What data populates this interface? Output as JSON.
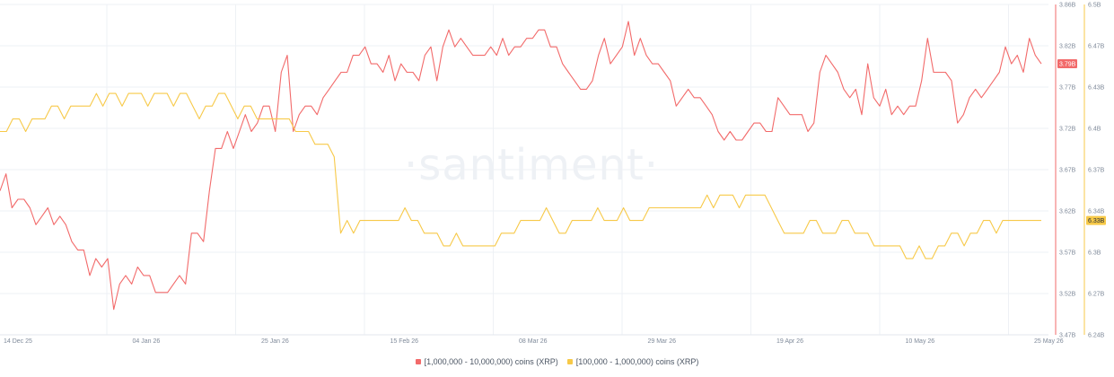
{
  "chart_data": {
    "type": "line",
    "x_labels": [
      "14 Dec 25",
      "04 Jan 26",
      "25 Jan 26",
      "15 Feb 26",
      "08 Mar 26",
      "29 Mar 26",
      "19 Apr 26",
      "10 May 26",
      "25 May 26"
    ],
    "series": [
      {
        "name": "[1,000,000 - 10,000,000) coins (XRP)",
        "color": "#f26a6a",
        "axis": "left",
        "ylim": [
          3.47,
          3.86
        ],
        "ticks": [
          "3.86B",
          "3.82B",
          "3.77B",
          "3.72B",
          "3.67B",
          "3.62B",
          "3.57B",
          "3.52B",
          "3.47B"
        ],
        "current_label": "3.79B",
        "values": [
          3.64,
          3.66,
          3.62,
          3.63,
          3.63,
          3.62,
          3.6,
          3.61,
          3.62,
          3.6,
          3.61,
          3.6,
          3.58,
          3.57,
          3.57,
          3.54,
          3.56,
          3.55,
          3.56,
          3.5,
          3.53,
          3.54,
          3.53,
          3.55,
          3.54,
          3.54,
          3.52,
          3.52,
          3.52,
          3.53,
          3.54,
          3.53,
          3.59,
          3.59,
          3.58,
          3.64,
          3.69,
          3.69,
          3.71,
          3.69,
          3.71,
          3.73,
          3.71,
          3.72,
          3.74,
          3.74,
          3.71,
          3.78,
          3.8,
          3.71,
          3.73,
          3.74,
          3.74,
          3.73,
          3.75,
          3.76,
          3.77,
          3.78,
          3.78,
          3.8,
          3.8,
          3.81,
          3.79,
          3.79,
          3.78,
          3.8,
          3.77,
          3.79,
          3.78,
          3.78,
          3.77,
          3.8,
          3.81,
          3.77,
          3.81,
          3.83,
          3.81,
          3.82,
          3.81,
          3.8,
          3.8,
          3.8,
          3.81,
          3.8,
          3.82,
          3.8,
          3.81,
          3.81,
          3.82,
          3.82,
          3.83,
          3.83,
          3.81,
          3.81,
          3.79,
          3.78,
          3.77,
          3.76,
          3.76,
          3.77,
          3.8,
          3.82,
          3.79,
          3.8,
          3.81,
          3.84,
          3.8,
          3.82,
          3.8,
          3.79,
          3.79,
          3.78,
          3.77,
          3.74,
          3.75,
          3.76,
          3.75,
          3.75,
          3.74,
          3.73,
          3.71,
          3.7,
          3.71,
          3.7,
          3.7,
          3.71,
          3.72,
          3.72,
          3.71,
          3.71,
          3.75,
          3.74,
          3.73,
          3.73,
          3.73,
          3.71,
          3.72,
          3.78,
          3.8,
          3.79,
          3.78,
          3.76,
          3.75,
          3.76,
          3.73,
          3.79,
          3.75,
          3.74,
          3.76,
          3.73,
          3.74,
          3.73,
          3.74,
          3.74,
          3.77,
          3.82,
          3.78,
          3.78,
          3.78,
          3.77,
          3.72,
          3.73,
          3.75,
          3.76,
          3.75,
          3.76,
          3.77,
          3.78,
          3.81,
          3.79,
          3.8,
          3.78,
          3.82,
          3.8,
          3.79
        ]
      },
      {
        "name": "[100,000  - 1,000,000) coins (XRP)",
        "color": "#f7c948",
        "axis": "right",
        "ylim": [
          6.24,
          6.5
        ],
        "ticks": [
          "6.5B",
          "6.47B",
          "6.43B",
          "6.4B",
          "6.37B",
          "6.34B",
          "6.3B",
          "6.27B",
          "6.24B"
        ],
        "current_label": "6.33B",
        "values": [
          6.4,
          6.4,
          6.41,
          6.41,
          6.4,
          6.41,
          6.41,
          6.41,
          6.42,
          6.42,
          6.41,
          6.42,
          6.42,
          6.42,
          6.42,
          6.43,
          6.42,
          6.43,
          6.43,
          6.42,
          6.43,
          6.43,
          6.43,
          6.42,
          6.43,
          6.43,
          6.43,
          6.42,
          6.43,
          6.43,
          6.42,
          6.41,
          6.42,
          6.42,
          6.43,
          6.43,
          6.42,
          6.41,
          6.42,
          6.42,
          6.41,
          6.41,
          6.41,
          6.41,
          6.41,
          6.41,
          6.4,
          6.4,
          6.4,
          6.39,
          6.39,
          6.39,
          6.38,
          6.32,
          6.33,
          6.32,
          6.33,
          6.33,
          6.33,
          6.33,
          6.33,
          6.33,
          6.33,
          6.34,
          6.33,
          6.33,
          6.32,
          6.32,
          6.32,
          6.31,
          6.31,
          6.32,
          6.31,
          6.31,
          6.31,
          6.31,
          6.31,
          6.31,
          6.32,
          6.32,
          6.32,
          6.33,
          6.33,
          6.33,
          6.33,
          6.34,
          6.33,
          6.32,
          6.32,
          6.33,
          6.33,
          6.33,
          6.33,
          6.34,
          6.33,
          6.33,
          6.33,
          6.34,
          6.33,
          6.33,
          6.33,
          6.34,
          6.34,
          6.34,
          6.34,
          6.34,
          6.34,
          6.34,
          6.34,
          6.34,
          6.35,
          6.34,
          6.35,
          6.35,
          6.35,
          6.34,
          6.35,
          6.35,
          6.35,
          6.35,
          6.34,
          6.33,
          6.32,
          6.32,
          6.32,
          6.32,
          6.33,
          6.33,
          6.32,
          6.32,
          6.32,
          6.33,
          6.33,
          6.32,
          6.32,
          6.32,
          6.31,
          6.31,
          6.31,
          6.31,
          6.31,
          6.3,
          6.3,
          6.31,
          6.3,
          6.3,
          6.31,
          6.31,
          6.32,
          6.32,
          6.31,
          6.32,
          6.32,
          6.33,
          6.33,
          6.32,
          6.33,
          6.33,
          6.33,
          6.33,
          6.33,
          6.33,
          6.33
        ]
      }
    ]
  },
  "legend": [
    {
      "label": "[1,000,000 - 10,000,000) coins (XRP)",
      "color": "#f26a6a"
    },
    {
      "label": "[100,000  - 1,000,000) coins (XRP)",
      "color": "#f7c948"
    }
  ],
  "watermark": "·santiment·",
  "colors": {
    "grid": "#eef1f5",
    "axis_left": "#f26a6a",
    "axis_right": "#f7c948",
    "tick_text": "#7f8a9a"
  }
}
